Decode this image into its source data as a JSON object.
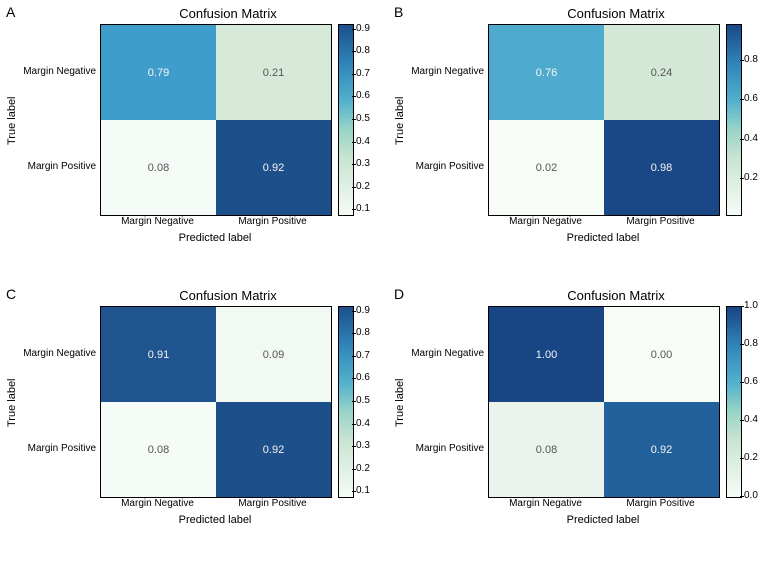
{
  "shared": {
    "title": "Confusion Matrix",
    "ylabel": "True label",
    "xlabel": "Predicted label",
    "row_labels": [
      "Margin Negative",
      "Margin Positive"
    ],
    "col_labels": [
      "Margin Negative",
      "Margin Positive"
    ],
    "title_fontsize": 13,
    "label_fontsize": 11,
    "tick_fontsize": 10,
    "cell_fontsize": 11,
    "text_color_light": "#f5f5f5",
    "text_color_dark": "#555555",
    "border_color": "#000000",
    "background_color": "#ffffff"
  },
  "panels": {
    "A": {
      "label": "A",
      "values": [
        [
          0.79,
          0.21
        ],
        [
          0.08,
          0.92
        ]
      ],
      "cell_text": [
        [
          "0.79",
          "0.21"
        ],
        [
          "0.08",
          "0.92"
        ]
      ],
      "cell_colors": [
        [
          "#3f9dcb",
          "#d7ead9"
        ],
        [
          "#f5fbf6",
          "#1d4f8b"
        ]
      ],
      "cell_text_colors": [
        [
          "light",
          "dark"
        ],
        [
          "dark",
          "light"
        ]
      ],
      "cbar_ticks": [
        "0.1",
        "0.2",
        "0.3",
        "0.4",
        "0.5",
        "0.6",
        "0.7",
        "0.8",
        "0.9"
      ],
      "cbar_min": 0.08,
      "cbar_max": 0.92,
      "cbar_stops": [
        [
          0,
          "#1d4f8b"
        ],
        [
          20,
          "#2f84b9"
        ],
        [
          40,
          "#53b1cd"
        ],
        [
          55,
          "#98d4c7"
        ],
        [
          70,
          "#c9e4d2"
        ],
        [
          100,
          "#f5fbf6"
        ]
      ]
    },
    "B": {
      "label": "B",
      "values": [
        [
          0.76,
          0.24
        ],
        [
          0.02,
          0.98
        ]
      ],
      "cell_text": [
        [
          "0.76",
          "0.24"
        ],
        [
          "0.02",
          "0.98"
        ]
      ],
      "cell_colors": [
        [
          "#4fabcd",
          "#d3e8d6"
        ],
        [
          "#f7fcf7",
          "#1a4887"
        ]
      ],
      "cell_text_colors": [
        [
          "light",
          "dark"
        ],
        [
          "dark",
          "light"
        ]
      ],
      "cbar_ticks": [
        "0.2",
        "0.4",
        "0.6",
        "0.8"
      ],
      "cbar_min": 0.02,
      "cbar_max": 0.98,
      "cbar_stops": [
        [
          0,
          "#1a4887"
        ],
        [
          20,
          "#2f84b9"
        ],
        [
          40,
          "#53b1cd"
        ],
        [
          55,
          "#98d4c7"
        ],
        [
          70,
          "#c9e4d2"
        ],
        [
          100,
          "#f7fcf7"
        ]
      ]
    },
    "C": {
      "label": "C",
      "values": [
        [
          0.91,
          0.09
        ],
        [
          0.08,
          0.92
        ]
      ],
      "cell_text": [
        [
          "0.91",
          "0.09"
        ],
        [
          "0.08",
          "0.92"
        ]
      ],
      "cell_colors": [
        [
          "#1f548f",
          "#f2f9f3"
        ],
        [
          "#f5fbf6",
          "#1d4f8b"
        ]
      ],
      "cell_text_colors": [
        [
          "light",
          "dark"
        ],
        [
          "dark",
          "light"
        ]
      ],
      "cbar_ticks": [
        "0.1",
        "0.2",
        "0.3",
        "0.4",
        "0.5",
        "0.6",
        "0.7",
        "0.8",
        "0.9"
      ],
      "cbar_min": 0.08,
      "cbar_max": 0.92,
      "cbar_stops": [
        [
          0,
          "#1d4f8b"
        ],
        [
          20,
          "#2f84b9"
        ],
        [
          40,
          "#53b1cd"
        ],
        [
          55,
          "#98d4c7"
        ],
        [
          70,
          "#c9e4d2"
        ],
        [
          100,
          "#f5fbf6"
        ]
      ]
    },
    "D": {
      "label": "D",
      "values": [
        [
          1.0,
          0.0
        ],
        [
          0.08,
          0.92
        ]
      ],
      "cell_text": [
        [
          "1.00",
          "0.00"
        ],
        [
          "0.08",
          "0.92"
        ]
      ],
      "cell_colors": [
        [
          "#184584",
          "#f7fcf7"
        ],
        [
          "#eaf4ec",
          "#22619b"
        ]
      ],
      "cell_text_colors": [
        [
          "light",
          "dark"
        ],
        [
          "dark",
          "light"
        ]
      ],
      "cbar_ticks": [
        "0.0",
        "0.2",
        "0.4",
        "0.6",
        "0.8",
        "1.0"
      ],
      "cbar_min": 0.0,
      "cbar_max": 1.0,
      "cbar_stops": [
        [
          0,
          "#184584"
        ],
        [
          20,
          "#2f84b9"
        ],
        [
          40,
          "#53b1cd"
        ],
        [
          55,
          "#98d4c7"
        ],
        [
          70,
          "#c9e4d2"
        ],
        [
          100,
          "#f7fcf7"
        ]
      ]
    }
  }
}
